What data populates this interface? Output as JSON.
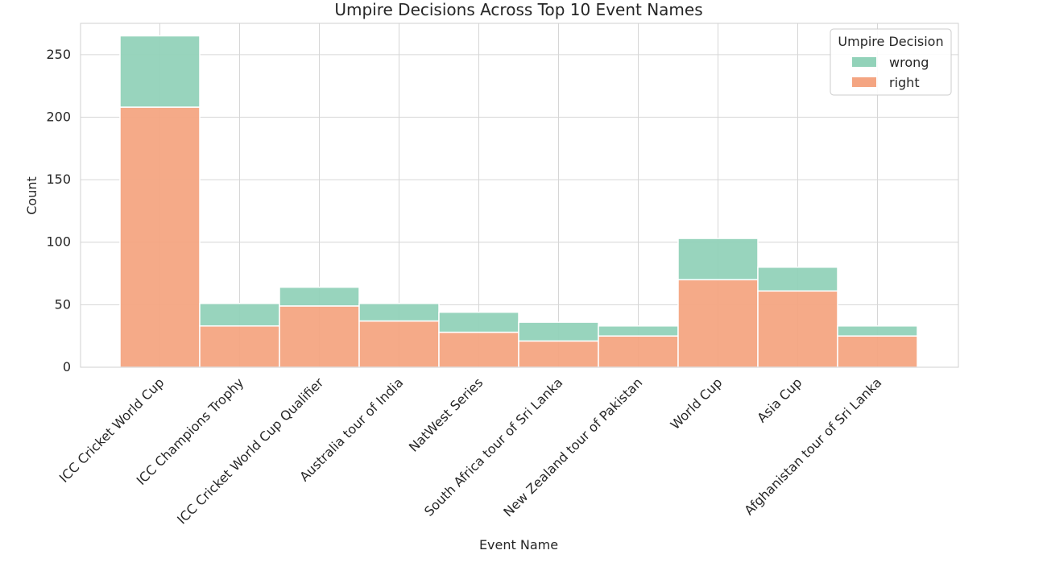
{
  "chart_data": {
    "type": "bar",
    "stacked": true,
    "title": "Umpire Decisions Across Top 10 Event Names",
    "xlabel": "Event Name",
    "ylabel": "Count",
    "ylim": [
      0,
      275
    ],
    "yticks": [
      0,
      50,
      100,
      150,
      200,
      250
    ],
    "grid": true,
    "legend_title": "Umpire Decision",
    "legend_position": "top-right",
    "categories": [
      "ICC Cricket World Cup",
      "ICC Champions Trophy",
      "ICC Cricket World Cup Qualifier",
      "Australia tour of India",
      "NatWest Series",
      "South Africa tour of Sri Lanka",
      "New Zealand tour of Pakistan",
      "World Cup",
      "Asia Cup",
      "Afghanistan tour of Sri Lanka"
    ],
    "series": [
      {
        "name": "right",
        "color": "#f4a582",
        "values": [
          208,
          33,
          49,
          37,
          28,
          21,
          25,
          70,
          61,
          25
        ]
      },
      {
        "name": "wrong",
        "color": "#92d2b9",
        "values": [
          57,
          18,
          15,
          14,
          16,
          15,
          8,
          33,
          19,
          8
        ]
      }
    ]
  }
}
